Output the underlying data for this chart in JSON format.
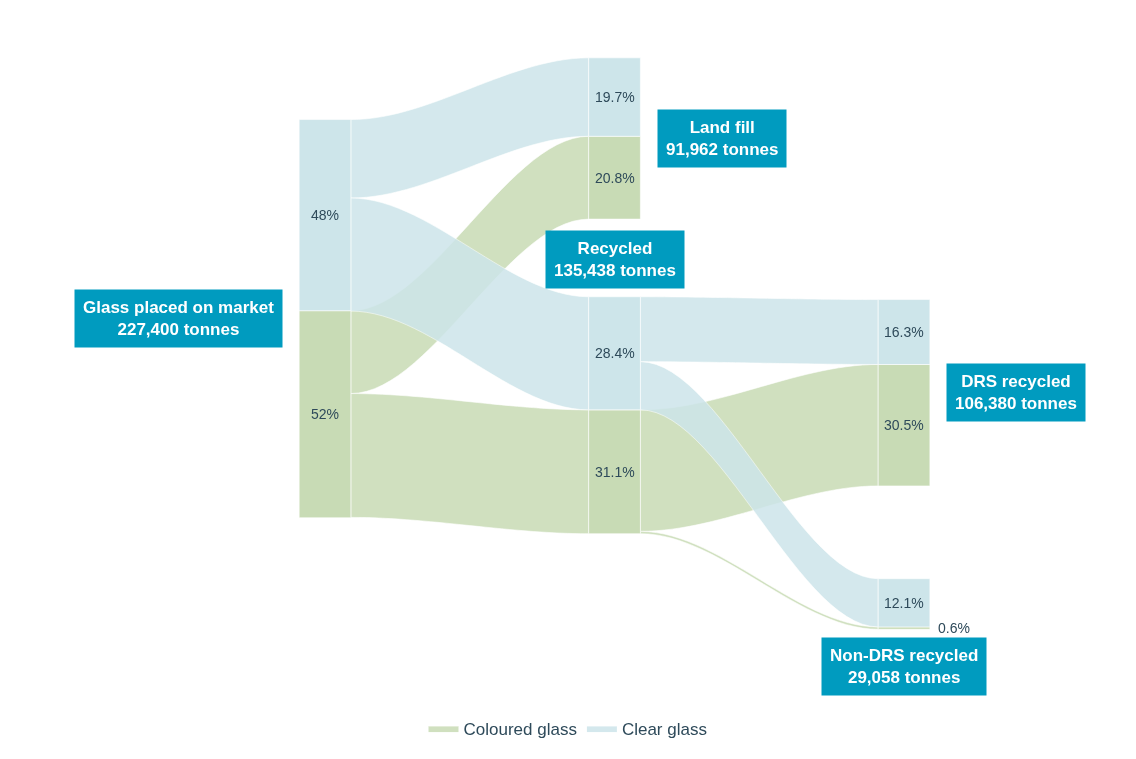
{
  "chart_data": {
    "type": "other",
    "categories": [
      "Glass placed on market\n227,400 tonnes",
      "Land fill\n91,962 tonnes",
      "Recycled\n135,438 tonnes",
      "Non-DRS recycled\n29,058 tonnes",
      "DRS recycled\n106,380 tonnes"
    ],
    "series": [
      {
        "name": "Coloured glass",
        "color": "#c8dbb5",
        "values": [
          52,
          20.8,
          31.1,
          0.6,
          30.5
        ],
        "value_labels": [
          "52%",
          "20.8%",
          "31.1%",
          "0.6%",
          "30.5%"
        ]
      },
      {
        "name": "Clear glass",
        "color": "#cde5ea",
        "values": [
          48,
          19.7,
          28.4,
          12.1,
          16.3
        ],
        "value_labels": [
          "48%",
          "19.7%",
          "28.4%",
          "12.1%",
          "16.3%"
        ]
      }
    ],
    "legend": "bottom"
  }
}
